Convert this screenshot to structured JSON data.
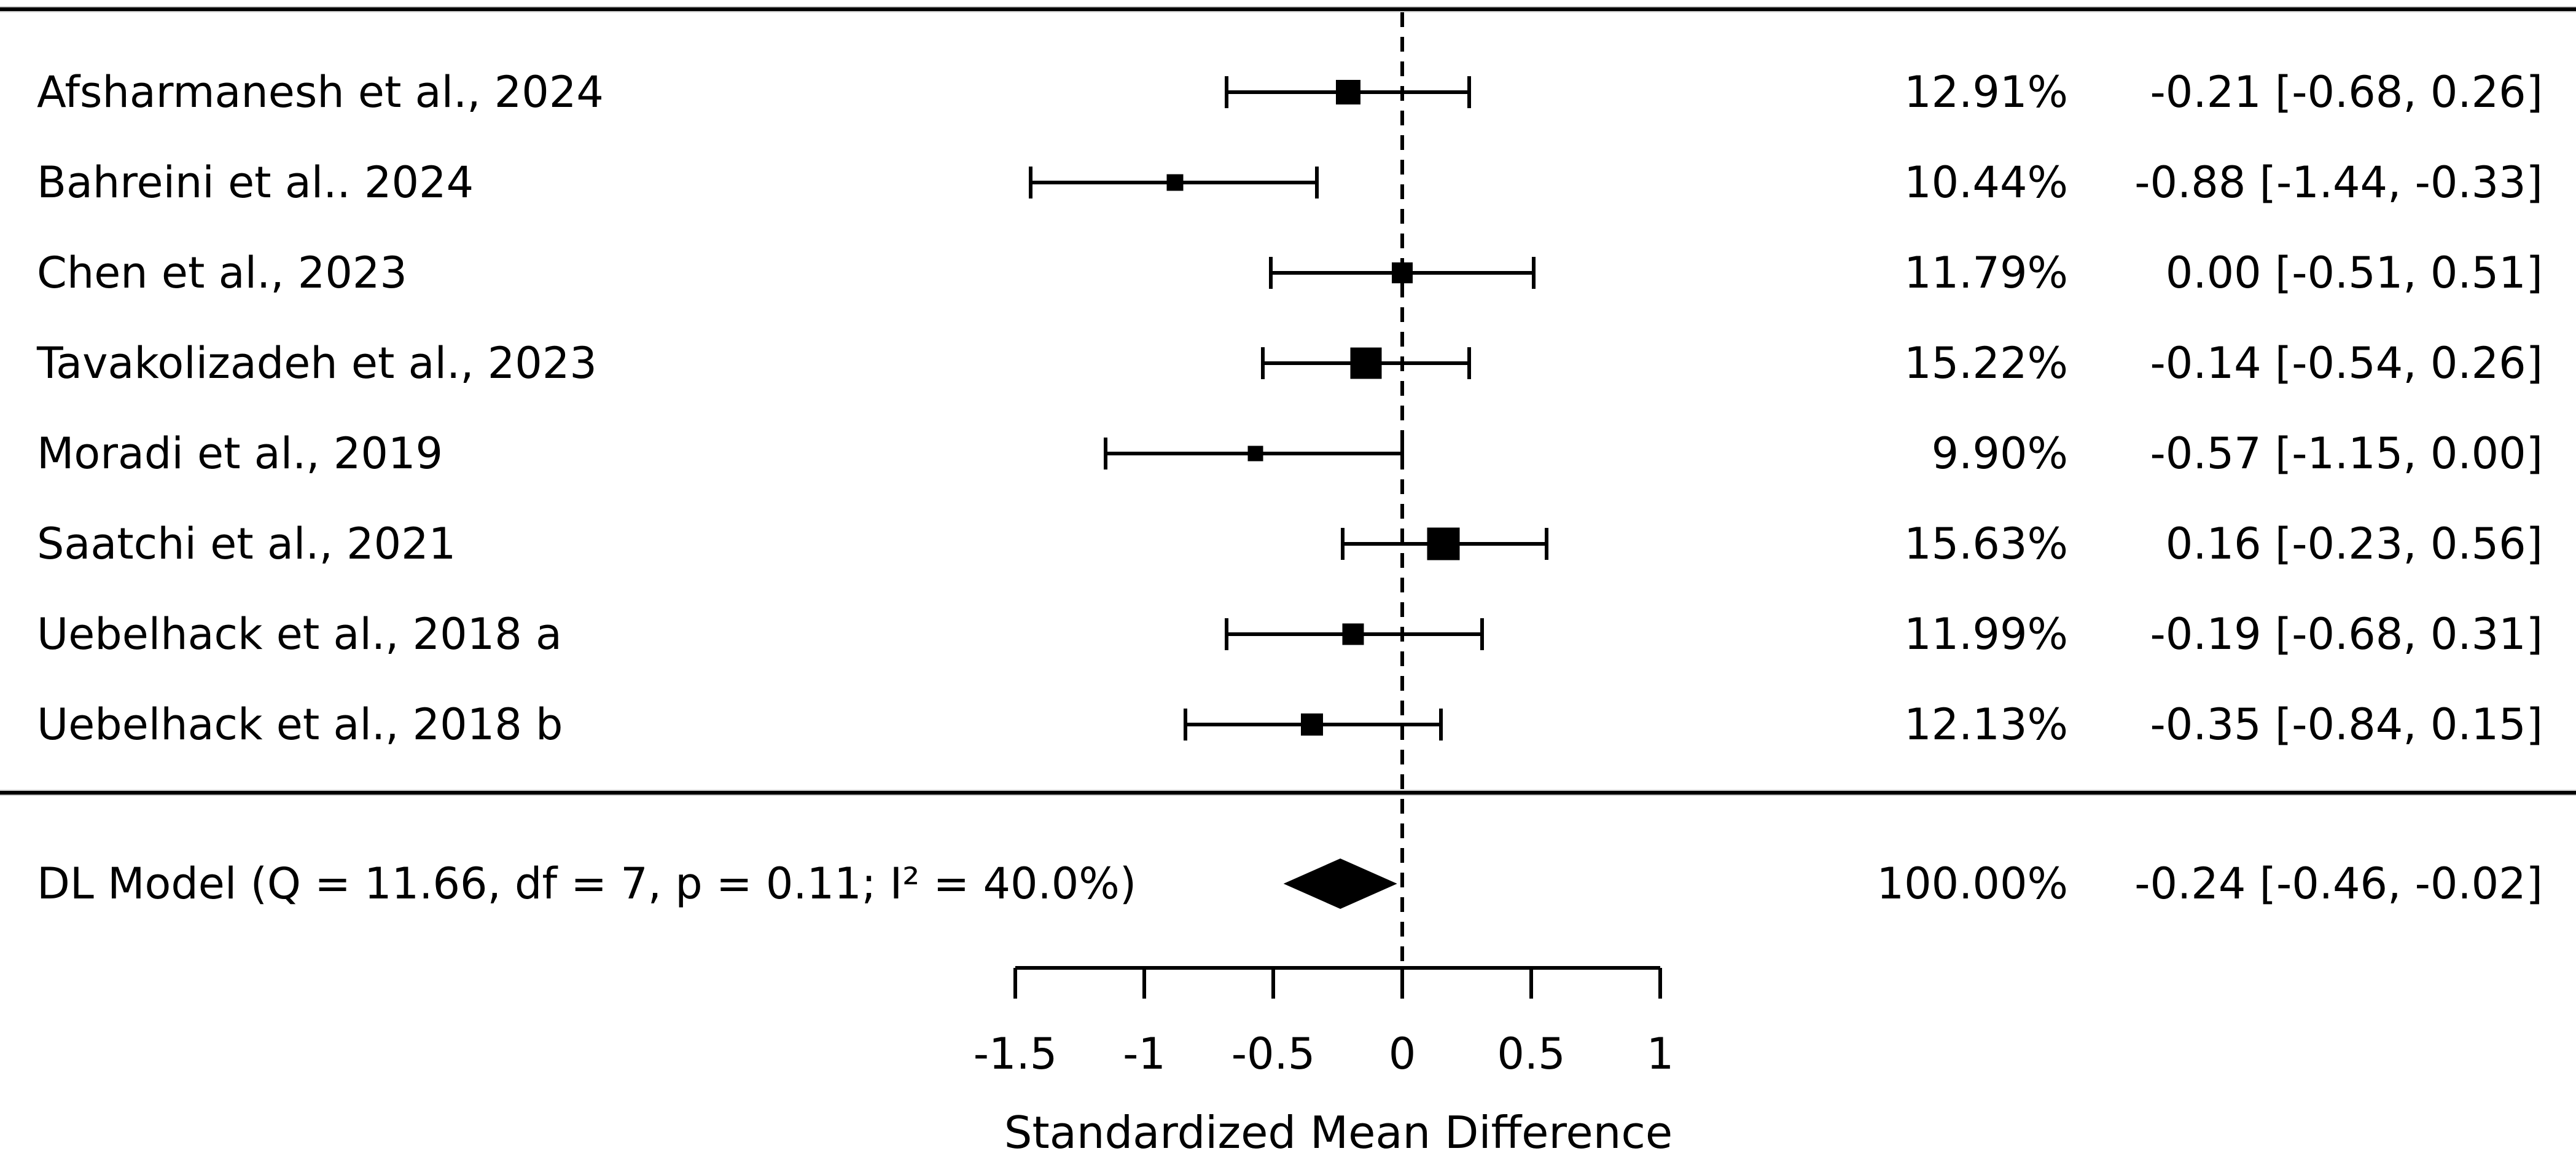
{
  "figure": {
    "background_color": "#ffffff",
    "ink_color": "#000000"
  },
  "chart_data": {
    "type": "scatter",
    "variant": "forest-plot-meta-analysis",
    "title": "",
    "xlabel": "Standardized Mean Difference",
    "x_axis_range": [
      -1.5,
      1
    ],
    "x_tick_values": [
      -1.5,
      -1,
      -0.5,
      0,
      0.5,
      1
    ],
    "x_tick_labels": [
      "-1.5",
      "-1",
      "-0.5",
      "0",
      "0.5",
      "1"
    ],
    "reference_line_x": 0,
    "grid": false,
    "studies": [
      {
        "label": "Afsharmanesh et al., 2024",
        "weight": 12.91,
        "weight_label": "12.91%",
        "estimate": -0.21,
        "ci_low": -0.68,
        "ci_high": 0.26,
        "effect_label": "-0.21 [-0.68,  0.26]"
      },
      {
        "label": "Bahreini et al.. 2024",
        "weight": 10.44,
        "weight_label": "10.44%",
        "estimate": -0.88,
        "ci_low": -1.44,
        "ci_high": -0.33,
        "effect_label": "-0.88 [-1.44, -0.33]"
      },
      {
        "label": "Chen et al., 2023",
        "weight": 11.79,
        "weight_label": "11.79%",
        "estimate": 0.0,
        "ci_low": -0.51,
        "ci_high": 0.51,
        "effect_label": "0.00 [-0.51,  0.51]"
      },
      {
        "label": "Tavakolizadeh et al., 2023",
        "weight": 15.22,
        "weight_label": "15.22%",
        "estimate": -0.14,
        "ci_low": -0.54,
        "ci_high": 0.26,
        "effect_label": "-0.14 [-0.54,  0.26]"
      },
      {
        "label": "Moradi et al., 2019",
        "weight": 9.9,
        "weight_label": "9.90%",
        "estimate": -0.57,
        "ci_low": -1.15,
        "ci_high": 0.0,
        "effect_label": "-0.57 [-1.15,  0.00]"
      },
      {
        "label": "Saatchi et al., 2021",
        "weight": 15.63,
        "weight_label": "15.63%",
        "estimate": 0.16,
        "ci_low": -0.23,
        "ci_high": 0.56,
        "effect_label": "0.16 [-0.23,  0.56]"
      },
      {
        "label": "Uebelhack et al., 2018 a",
        "weight": 11.99,
        "weight_label": "11.99%",
        "estimate": -0.19,
        "ci_low": -0.68,
        "ci_high": 0.31,
        "effect_label": "-0.19 [-0.68,  0.31]"
      },
      {
        "label": "Uebelhack et al., 2018 b",
        "weight": 12.13,
        "weight_label": "12.13%",
        "estimate": -0.35,
        "ci_low": -0.84,
        "ci_high": 0.15,
        "effect_label": "-0.35 [-0.84,  0.15]"
      }
    ],
    "summary": {
      "label": "DL Model (Q = 11.66, df = 7, p = 0.11; I² = 40.0%)",
      "weight": 100.0,
      "weight_label": "100.00%",
      "estimate": -0.24,
      "ci_low": -0.46,
      "ci_high": -0.02,
      "effect_label": "-0.24 [-0.46, -0.02]"
    }
  }
}
